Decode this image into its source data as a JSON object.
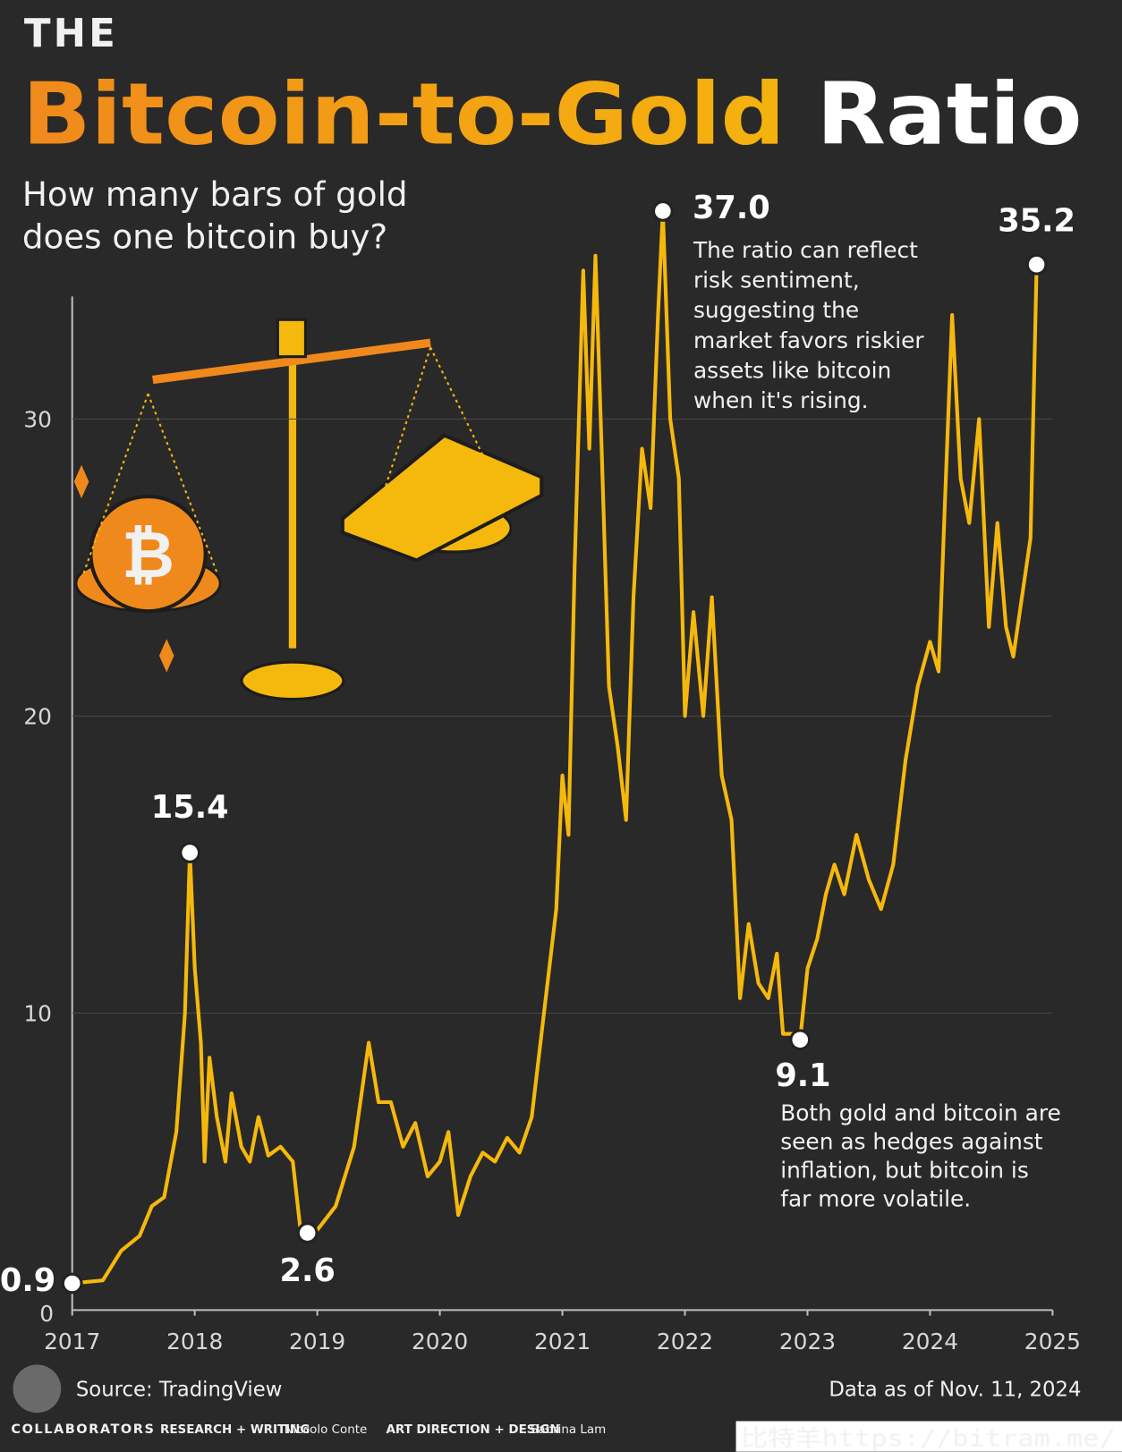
{
  "chart_data": {
    "type": "line",
    "title_prefix": "THE",
    "title_main": "Bitcoin-to-Gold",
    "title_end": "Ratio",
    "subtitle_lines": [
      "How many bars of gold",
      "does one bitcoin buy?"
    ],
    "color": "#f5b80d",
    "xlim": [
      2017,
      2025
    ],
    "xticks": [
      2017,
      2018,
      2019,
      2020,
      2021,
      2022,
      2023,
      2024,
      2025
    ],
    "ylim": [
      0,
      34
    ],
    "yticks": [
      0,
      10,
      20,
      30
    ],
    "grid": true,
    "x": [
      2017.0,
      2017.25,
      2017.4,
      2017.55,
      2017.65,
      2017.75,
      2017.85,
      2017.92,
      2017.96,
      2018.0,
      2018.05,
      2018.08,
      2018.12,
      2018.18,
      2018.25,
      2018.3,
      2018.38,
      2018.45,
      2018.52,
      2018.6,
      2018.7,
      2018.8,
      2018.86,
      2018.92,
      2019.0,
      2019.15,
      2019.3,
      2019.42,
      2019.5,
      2019.6,
      2019.7,
      2019.8,
      2019.9,
      2020.0,
      2020.07,
      2020.15,
      2020.25,
      2020.35,
      2020.45,
      2020.55,
      2020.65,
      2020.75,
      2020.85,
      2020.95,
      2021.0,
      2021.05,
      2021.1,
      2021.17,
      2021.22,
      2021.27,
      2021.32,
      2021.38,
      2021.45,
      2021.52,
      2021.58,
      2021.65,
      2021.72,
      2021.78,
      2021.82,
      2021.88,
      2021.95,
      2022.0,
      2022.07,
      2022.15,
      2022.22,
      2022.3,
      2022.38,
      2022.45,
      2022.52,
      2022.6,
      2022.68,
      2022.75,
      2022.8,
      2022.88,
      2022.94,
      2023.0,
      2023.08,
      2023.15,
      2023.22,
      2023.3,
      2023.4,
      2023.5,
      2023.6,
      2023.7,
      2023.8,
      2023.9,
      2024.0,
      2024.07,
      2024.12,
      2024.18,
      2024.25,
      2024.32,
      2024.4,
      2024.48,
      2024.55,
      2024.62,
      2024.68,
      2024.75,
      2024.82,
      2024.87
    ],
    "values": [
      0.9,
      1.0,
      2.0,
      2.5,
      3.5,
      3.8,
      6.0,
      10.0,
      15.4,
      11.5,
      9.0,
      5.0,
      8.5,
      6.5,
      5.0,
      7.3,
      5.5,
      5.0,
      6.5,
      5.2,
      5.5,
      5.0,
      2.8,
      2.6,
      2.7,
      3.5,
      5.5,
      9.0,
      7.0,
      7.0,
      5.5,
      6.3,
      4.5,
      5.0,
      6.0,
      3.2,
      4.5,
      5.3,
      5.0,
      5.8,
      5.3,
      6.5,
      10.0,
      13.5,
      18.0,
      16.0,
      25.0,
      35.0,
      29.0,
      35.5,
      29.0,
      21.0,
      19.0,
      16.5,
      24.0,
      29.0,
      27.0,
      33.5,
      37.0,
      30.0,
      28.0,
      20.0,
      23.5,
      20.0,
      24.0,
      18.0,
      16.5,
      10.5,
      13.0,
      11.0,
      10.5,
      12.0,
      9.3,
      9.3,
      9.1,
      11.5,
      12.5,
      14.0,
      15.0,
      14.0,
      16.0,
      14.5,
      13.5,
      15.0,
      18.5,
      21.0,
      22.5,
      21.5,
      27.0,
      33.5,
      28.0,
      26.5,
      30.0,
      23.0,
      26.5,
      23.0,
      22.0,
      24.0,
      26.0,
      35.2
    ],
    "highlights": [
      {
        "x": 2017.0,
        "value": 0.9,
        "label": "0.9"
      },
      {
        "x": 2017.96,
        "value": 15.4,
        "label": "15.4"
      },
      {
        "x": 2018.92,
        "value": 2.6,
        "label": "2.6"
      },
      {
        "x": 2021.82,
        "value": 37.0,
        "label": "37.0"
      },
      {
        "x": 2022.94,
        "value": 9.1,
        "label": "9.1"
      },
      {
        "x": 2024.87,
        "value": 35.2,
        "label": "35.2"
      }
    ],
    "notes": [
      {
        "lines": [
          "The ratio can reflect",
          "risk sentiment,",
          "suggesting the",
          "market favors riskier",
          "assets like bitcoin",
          "when it's rising."
        ]
      },
      {
        "lines": [
          "Both gold and bitcoin are",
          "seen as hedges against",
          "inflation, but bitcoin is",
          "far more volatile."
        ]
      }
    ],
    "source": "Source: TradingView",
    "data_date": "Data as of Nov. 11, 2024",
    "credits": {
      "brand": "COLLABORATORS",
      "research_role": "RESEARCH + WRITING",
      "research_name": "Niccolo Conte",
      "design_role": "ART DIRECTION + DESIGN",
      "design_name": "Sabrina Lam"
    },
    "watermark": "比特羊https://bitram.me/"
  }
}
